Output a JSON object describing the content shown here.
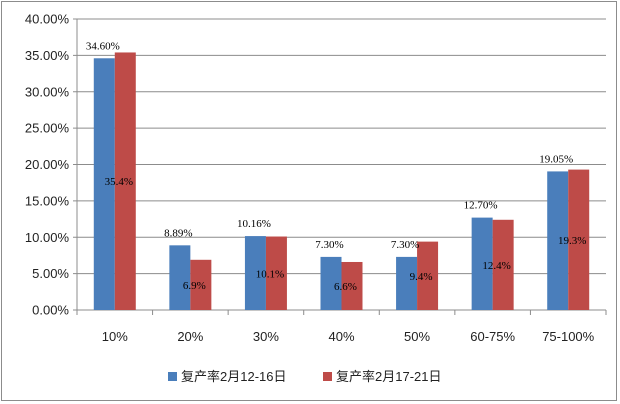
{
  "chart_data": {
    "type": "bar",
    "title": "",
    "xlabel": "",
    "ylabel": "",
    "categories": [
      "10%",
      "20%",
      "30%",
      "40%",
      "50%",
      "60-75%",
      "75-100%"
    ],
    "ylim": [
      0,
      40
    ],
    "yticks": [
      "0.00%",
      "5.00%",
      "10.00%",
      "15.00%",
      "20.00%",
      "25.00%",
      "30.00%",
      "35.00%",
      "40.00%"
    ],
    "grid": true,
    "legend_position": "bottom",
    "series": [
      {
        "name": "复产率2月12-16日",
        "color": "#4a7ebb",
        "values": [
          34.6,
          8.89,
          10.16,
          7.3,
          7.3,
          12.7,
          19.05
        ],
        "labels": [
          "34.60%",
          "8.89%",
          "10.16%",
          "7.30%",
          "7.30%",
          "12.70%",
          "19.05%"
        ]
      },
      {
        "name": "复产率2月17-21日",
        "color": "#be4b48",
        "values": [
          35.4,
          6.9,
          10.1,
          6.6,
          9.4,
          12.4,
          19.3
        ],
        "labels": [
          "35.4%",
          "6.9%",
          "10.1%",
          "6.6%",
          "9.4%",
          "12.4%",
          "19.3%"
        ]
      }
    ]
  }
}
